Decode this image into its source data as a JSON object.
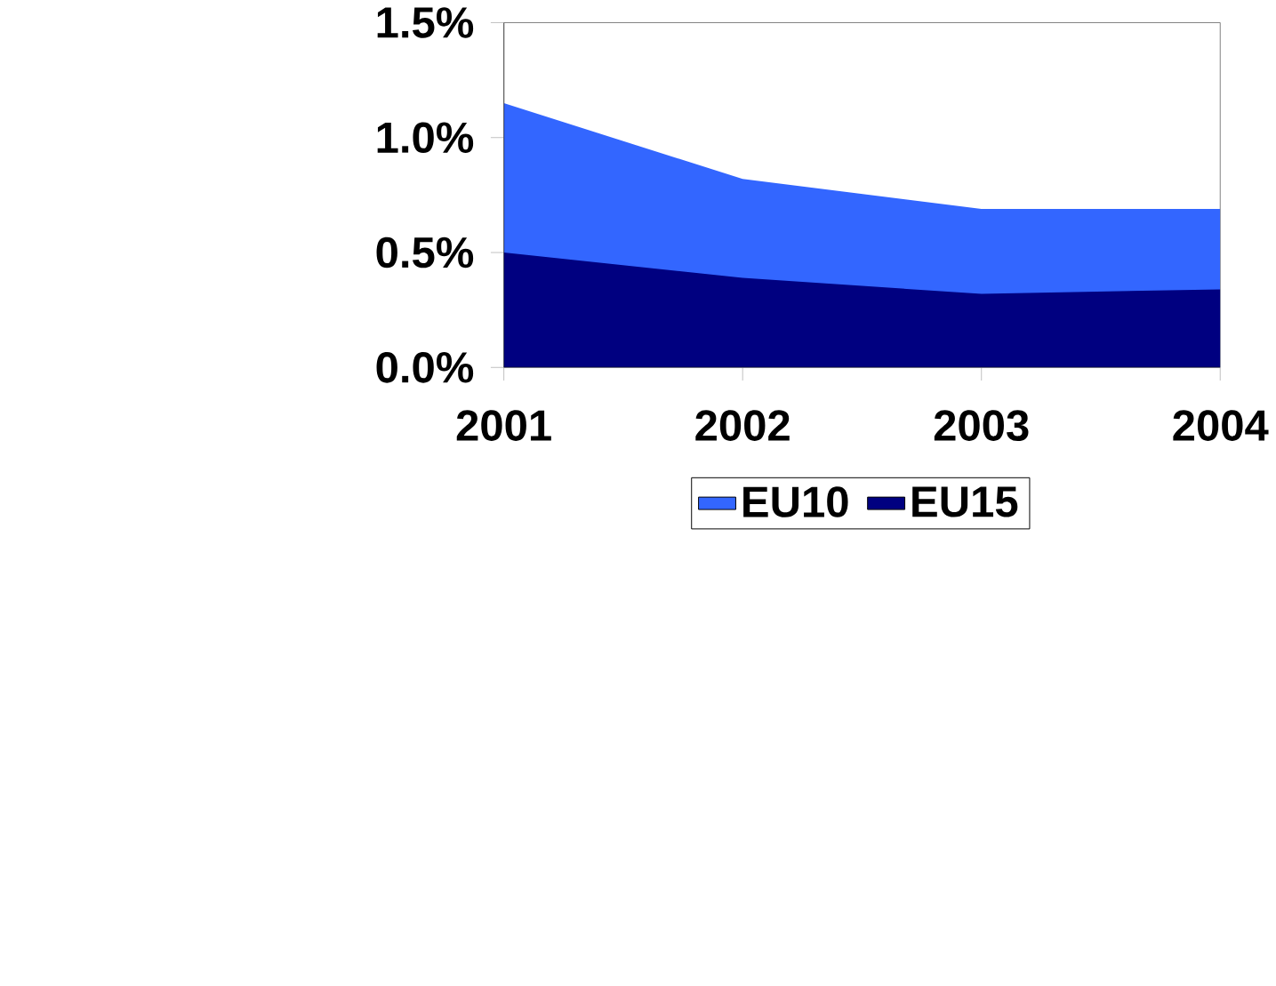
{
  "chart_data": {
    "type": "area",
    "categories": [
      "2001",
      "2002",
      "2003",
      "2004"
    ],
    "series": [
      {
        "name": "EU10",
        "color": "#3366ff",
        "values": [
          1.15,
          0.82,
          0.69,
          0.69
        ]
      },
      {
        "name": "EU15",
        "color": "#000080",
        "values": [
          0.5,
          0.39,
          0.32,
          0.34
        ]
      }
    ],
    "ylim": [
      0,
      1.5
    ],
    "yticks": [
      {
        "value": 0,
        "label": "0.0%"
      },
      {
        "value": 0.5,
        "label": "0.5%"
      },
      {
        "value": 1.0,
        "label": "1.0%"
      },
      {
        "value": 1.5,
        "label": "1.5%"
      }
    ],
    "grid": false,
    "legend": "bottom"
  }
}
